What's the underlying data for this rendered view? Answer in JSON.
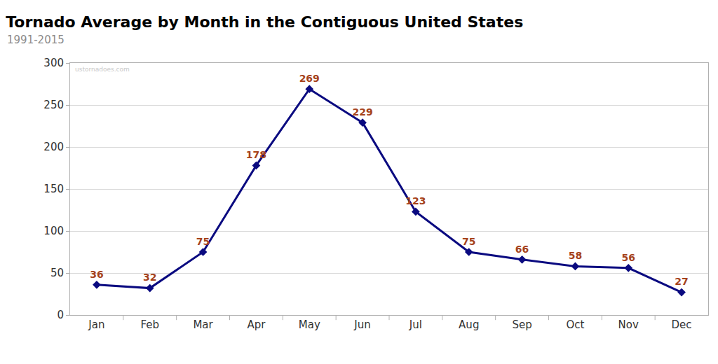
{
  "chart_data": {
    "type": "line",
    "title": "Tornado Average by Month in the Contiguous United States",
    "subtitle": "1991-2015",
    "annotations": [
      "ustornadoes.com"
    ],
    "categories": [
      "Jan",
      "Feb",
      "Mar",
      "Apr",
      "May",
      "Jun",
      "Jul",
      "Aug",
      "Sep",
      "Oct",
      "Nov",
      "Dec"
    ],
    "values": [
      36,
      32,
      75,
      178,
      269,
      229,
      123,
      75,
      66,
      58,
      56,
      27
    ],
    "color": "#0a0a80",
    "marker": "diamond",
    "data_labels": true,
    "ylim": [
      0,
      300
    ],
    "yticks": [
      0,
      50,
      100,
      150,
      200,
      250,
      300
    ],
    "grid": true
  }
}
